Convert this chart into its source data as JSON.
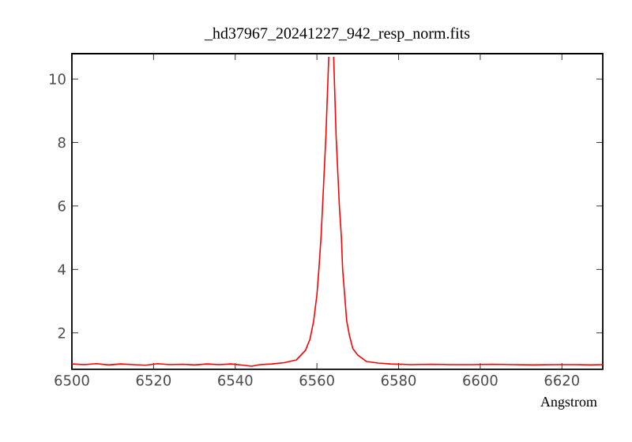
{
  "chart_data": {
    "type": "line",
    "title": "_hd37967_20241227_942_resp_norm.fits",
    "xlabel": "Angstrom",
    "xlim": [
      6500,
      6630
    ],
    "ylim": [
      0.85,
      10.8
    ],
    "xticks": [
      6500,
      6520,
      6540,
      6560,
      6580,
      6600,
      6620
    ],
    "yticks": [
      2,
      4,
      6,
      8,
      10
    ],
    "grid": false,
    "marker": "none",
    "line_style": "solid",
    "series": [
      {
        "color": "#ff0000",
        "x": [
          6500,
          6503,
          6506,
          6509,
          6512,
          6515,
          6518,
          6521,
          6524,
          6527,
          6530,
          6533,
          6536,
          6539,
          6542,
          6544,
          6546,
          6549,
          6552,
          6555,
          6557.2,
          6558.3,
          6559.2,
          6560,
          6560.5,
          6561,
          6561.4,
          6562.2,
          6562.9,
          6563.5,
          6564.1,
          6564.7,
          6565.5,
          6566,
          6566.3,
          6567.3,
          6568,
          6568.8,
          6570,
          6572.1,
          6575,
          6578,
          6583,
          6588,
          6593,
          6598,
          6603,
          6608,
          6613,
          6618,
          6623,
          6627,
          6630
        ],
        "values": [
          1.02,
          1.0,
          1.03,
          0.99,
          1.02,
          1.0,
          0.98,
          1.03,
          1.0,
          1.01,
          0.99,
          1.02,
          1.0,
          1.02,
          0.98,
          0.95,
          1.0,
          1.02,
          1.06,
          1.15,
          1.45,
          1.8,
          2.37,
          3.2,
          4.03,
          5.0,
          6.03,
          8.2,
          10.7,
          null,
          10.7,
          8.2,
          6.0,
          5.0,
          4.0,
          2.37,
          1.9,
          1.5,
          1.3,
          1.1,
          1.05,
          1.02,
          1.0,
          1.01,
          1.0,
          1.0,
          1.01,
          1.0,
          0.99,
          1.0,
          1.0,
          0.99,
          1.0
        ]
      }
    ]
  }
}
